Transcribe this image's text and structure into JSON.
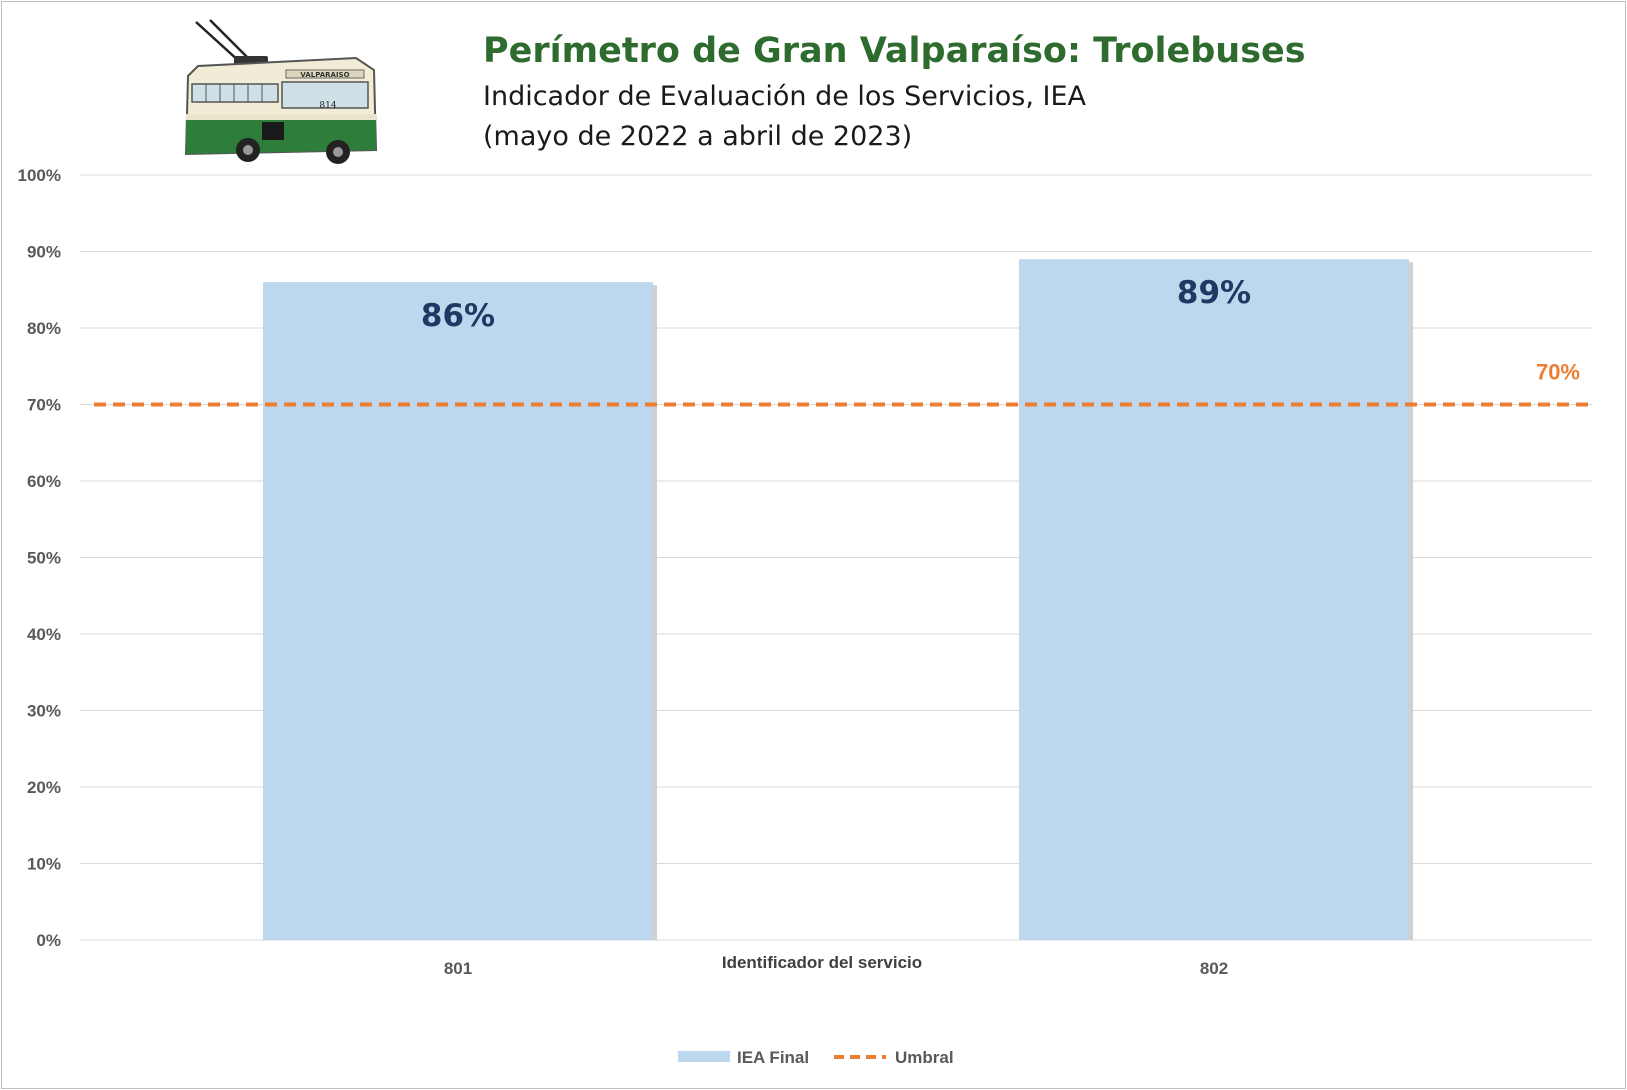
{
  "title": "Perímetro de Gran Valparaíso: Trolebuses",
  "subtitle_line1": "Indicador de Evaluación de los Servicios, IEA",
  "subtitle_line2": "(mayo de 2022 a abril de 2023)",
  "logo": {
    "icon": "trolleybus-icon",
    "sign_text": "VALPARAISO",
    "number_text": "814"
  },
  "colors": {
    "bar": "#bdd7ee",
    "threshold": "#ed7d31",
    "title": "#2e6b2e",
    "bar_label": "#1f3864",
    "grid": "#d9d9d9"
  },
  "chart_data": {
    "type": "bar",
    "title": "Perímetro de Gran Valparaíso: Trolebuses",
    "subtitle": "Indicador de Evaluación de los Servicios, IEA (mayo de 2022 a abril de 2023)",
    "xlabel": "Identificador del servicio",
    "ylabel": "",
    "categories": [
      "801",
      "802"
    ],
    "series": [
      {
        "name": "IEA Final",
        "values": [
          86,
          89
        ],
        "labels": [
          "86%",
          "89%"
        ]
      }
    ],
    "threshold": {
      "name": "Umbral",
      "value": 70,
      "label": "70%"
    },
    "ylim": [
      0,
      100
    ],
    "yticks": [
      0,
      10,
      20,
      30,
      40,
      50,
      60,
      70,
      80,
      90,
      100
    ],
    "ytick_labels": [
      "0%",
      "10%",
      "20%",
      "30%",
      "40%",
      "50%",
      "60%",
      "70%",
      "80%",
      "90%",
      "100%"
    ],
    "grid": true,
    "legend_position": "bottom"
  },
  "legend": {
    "bar_label": "IEA Final",
    "line_label": "Umbral"
  }
}
